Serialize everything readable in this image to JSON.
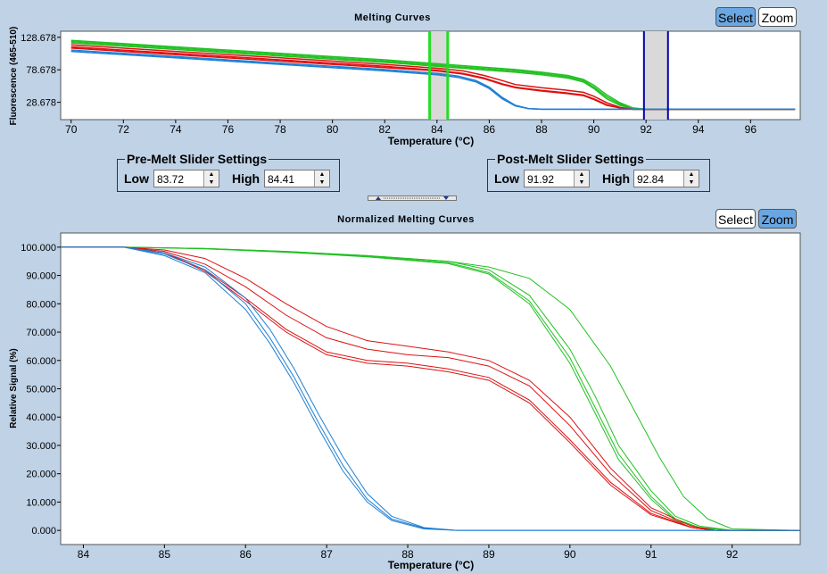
{
  "top_chart": {
    "title": "Melting Curves",
    "select_label": "Select",
    "zoom_label": "Zoom"
  },
  "pre_melt": {
    "legend": "Pre-Melt Slider Settings",
    "low_label": "Low",
    "low_value": "83.72",
    "high_label": "High",
    "high_value": "84.41"
  },
  "post_melt": {
    "legend": "Post-Melt Slider Settings",
    "low_label": "Low",
    "low_value": "91.92",
    "high_label": "High",
    "high_value": "92.84"
  },
  "bottom_chart": {
    "title": "Normalized Melting Curves",
    "select_label": "Select",
    "zoom_label": "Zoom"
  },
  "colors": {
    "blue": "#1f7fd4",
    "red": "#dd1111",
    "green": "#22c022",
    "pre_line": "#22dd22",
    "post_line": "#0000aa",
    "band": "#d9d9d9"
  },
  "chart_data": [
    {
      "type": "line",
      "title": "Melting Curves",
      "xlabel": "Temperature (°C)",
      "ylabel": "Fluorescence (465-510)",
      "xlim": [
        69.6,
        97.9
      ],
      "ylim": [
        2,
        138
      ],
      "xticks": [
        70,
        72,
        74,
        76,
        78,
        80,
        82,
        84,
        86,
        88,
        90,
        92,
        94,
        96
      ],
      "yticks": [
        "128.678",
        "78.678",
        "28.678"
      ],
      "ytick_values": [
        128.678,
        78.678,
        28.678
      ],
      "pre_melt_range": [
        83.72,
        84.41
      ],
      "post_melt_range": [
        91.92,
        92.84
      ],
      "series": [
        {
          "group": "green",
          "x": [
            70,
            74,
            78,
            82,
            84,
            86,
            87,
            88,
            89,
            89.6,
            90,
            90.5,
            91,
            91.5,
            92,
            97.7
          ],
          "y": [
            124,
            114,
            104,
            94,
            88,
            82,
            79,
            75,
            70,
            64,
            55,
            40,
            28,
            20,
            18,
            18
          ]
        },
        {
          "group": "green",
          "x": [
            70,
            74,
            78,
            82,
            84,
            86,
            87,
            88,
            89,
            89.6,
            90,
            90.5,
            91,
            91.5,
            92,
            97.7
          ],
          "y": [
            122,
            112,
            102,
            92,
            86,
            80,
            77,
            73,
            68,
            62,
            52,
            37,
            26,
            19,
            18,
            18
          ]
        },
        {
          "group": "green",
          "x": [
            70,
            74,
            78,
            82,
            84,
            86,
            87,
            88,
            89,
            89.6,
            90,
            90.5,
            91,
            91.5,
            92,
            97.7
          ],
          "y": [
            120,
            110,
            100,
            90,
            84,
            78,
            75,
            71,
            66,
            60,
            50,
            34,
            24,
            19,
            18,
            18
          ]
        },
        {
          "group": "red",
          "x": [
            70,
            74,
            78,
            82,
            84,
            85,
            85.8,
            86.5,
            87,
            88,
            89,
            89.6,
            90,
            90.5,
            91,
            91.5,
            92,
            97.7
          ],
          "y": [
            117,
            107,
            97,
            87,
            81,
            77,
            70,
            62,
            56,
            51,
            47,
            44,
            38,
            28,
            21,
            18,
            18,
            18
          ]
        },
        {
          "group": "red",
          "x": [
            70,
            74,
            78,
            82,
            84,
            85,
            85.8,
            86.5,
            87,
            88,
            89,
            89.6,
            90,
            90.5,
            91,
            91.5,
            92,
            97.7
          ],
          "y": [
            114,
            104,
            94,
            84,
            78,
            73,
            66,
            57,
            52,
            47,
            43,
            40,
            34,
            25,
            20,
            18,
            18,
            18
          ]
        },
        {
          "group": "red",
          "x": [
            70,
            74,
            78,
            82,
            84,
            85,
            85.8,
            86.5,
            87,
            88,
            89,
            89.6,
            90,
            90.5,
            91,
            91.5,
            92,
            97.7
          ],
          "y": [
            112,
            102,
            92,
            82,
            77,
            72,
            65,
            56,
            51,
            46,
            42,
            39,
            33,
            24,
            20,
            18,
            18,
            18
          ]
        },
        {
          "group": "blue",
          "x": [
            70,
            74,
            78,
            82,
            84,
            84.8,
            85.5,
            86,
            86.5,
            87,
            87.5,
            88,
            97.7
          ],
          "y": [
            109,
            99,
            89,
            79,
            73,
            69,
            62,
            52,
            36,
            24,
            19,
            18,
            18
          ]
        },
        {
          "group": "blue",
          "x": [
            70,
            74,
            78,
            82,
            84,
            84.8,
            85.5,
            86,
            86.5,
            87,
            87.5,
            88,
            97.7
          ],
          "y": [
            107,
            97,
            87,
            77,
            71,
            67,
            60,
            50,
            34,
            23,
            19,
            18,
            18
          ]
        }
      ]
    },
    {
      "type": "line",
      "title": "Normalized Melting Curves",
      "xlabel": "Temperature (°C)",
      "ylabel": "Relative Signal (%)",
      "xlim": [
        83.72,
        92.84
      ],
      "ylim": [
        -5,
        105
      ],
      "xticks": [
        84,
        85,
        86,
        87,
        88,
        89,
        90,
        91,
        92
      ],
      "yticks": [
        "100.000",
        "90.000",
        "80.000",
        "70.000",
        "60.000",
        "50.000",
        "40.000",
        "30.000",
        "20.000",
        "10.000",
        "0.000"
      ],
      "ytick_values": [
        100,
        90,
        80,
        70,
        60,
        50,
        40,
        30,
        20,
        10,
        0
      ],
      "series": [
        {
          "group": "green",
          "x": [
            83.72,
            84.5,
            85.5,
            86.5,
            87.5,
            88.5,
            89,
            89.5,
            90,
            90.3,
            90.6,
            91,
            91.3,
            91.6,
            92,
            92.84
          ],
          "y": [
            100,
            100,
            99.5,
            98.5,
            97,
            95,
            92,
            83,
            64,
            48,
            30,
            14,
            5,
            1.5,
            0,
            0
          ]
        },
        {
          "group": "green",
          "x": [
            83.72,
            84.5,
            85.5,
            86.5,
            87.5,
            88.5,
            89,
            89.5,
            90,
            90.3,
            90.6,
            91,
            91.3,
            91.6,
            92,
            92.84
          ],
          "y": [
            100,
            100,
            99.5,
            98.3,
            96.8,
            94.5,
            91,
            81,
            61,
            44,
            27,
            12,
            4,
            1,
            0,
            0
          ]
        },
        {
          "group": "green",
          "x": [
            83.72,
            84.5,
            85.5,
            86.5,
            87.5,
            88.5,
            89,
            89.5,
            90,
            90.3,
            90.6,
            91,
            91.3,
            91.6,
            92,
            92.84
          ],
          "y": [
            100,
            100,
            99.4,
            98.2,
            96.6,
            94.2,
            90.5,
            80,
            59,
            42,
            25,
            11,
            3.5,
            1,
            0,
            0
          ]
        },
        {
          "group": "green",
          "x": [
            83.72,
            84.5,
            85.5,
            86.5,
            87.5,
            88.5,
            89,
            89.5,
            90,
            90.5,
            90.8,
            91.1,
            91.4,
            91.7,
            92,
            92.84
          ],
          "y": [
            100,
            100,
            99.5,
            98.5,
            97,
            95,
            93,
            89,
            78,
            58,
            42,
            26,
            12,
            4,
            0.5,
            0
          ]
        },
        {
          "group": "red",
          "x": [
            83.72,
            84.5,
            85,
            85.5,
            86,
            86.5,
            87,
            87.5,
            88,
            88.5,
            89,
            89.5,
            90,
            90.5,
            91,
            91.5,
            91.8,
            92.84
          ],
          "y": [
            100,
            100,
            99,
            96,
            89,
            80,
            72,
            67,
            65,
            63,
            60,
            53,
            40,
            22,
            8,
            1.5,
            0,
            0
          ]
        },
        {
          "group": "red",
          "x": [
            83.72,
            84.5,
            85,
            85.5,
            86,
            86.5,
            87,
            87.5,
            88,
            88.5,
            89,
            89.5,
            90,
            90.5,
            91,
            91.5,
            91.8,
            92.84
          ],
          "y": [
            100,
            100,
            98.5,
            94,
            86,
            76,
            68,
            64,
            62,
            61,
            58,
            51,
            37,
            20,
            7,
            1,
            0,
            0
          ]
        },
        {
          "group": "red",
          "x": [
            83.72,
            84.5,
            85,
            85.5,
            86,
            86.5,
            87,
            87.5,
            88,
            88.5,
            89,
            89.5,
            90,
            90.5,
            91,
            91.5,
            91.8,
            92.84
          ],
          "y": [
            100,
            100,
            98,
            92,
            82,
            71,
            63,
            60,
            59,
            57,
            54,
            46,
            32,
            17,
            6,
            1,
            0,
            0
          ]
        },
        {
          "group": "red",
          "x": [
            83.72,
            84.5,
            85,
            85.5,
            86,
            86.5,
            87,
            87.5,
            88,
            88.5,
            89,
            89.5,
            90,
            90.5,
            91,
            91.5,
            91.8,
            92.84
          ],
          "y": [
            100,
            100,
            98,
            91.5,
            81,
            70,
            62,
            59,
            58,
            56,
            53,
            45,
            31,
            16,
            5.5,
            1,
            0,
            0
          ]
        },
        {
          "group": "blue",
          "x": [
            83.72,
            84.5,
            85,
            85.5,
            86,
            86.3,
            86.6,
            86.9,
            87.2,
            87.5,
            87.8,
            88.2,
            88.6,
            92.84
          ],
          "y": [
            100,
            100,
            98,
            93,
            82,
            71,
            57,
            41,
            26,
            13,
            5,
            1,
            0,
            0
          ]
        },
        {
          "group": "blue",
          "x": [
            83.72,
            84.5,
            85,
            85.5,
            86,
            86.3,
            86.6,
            86.9,
            87.2,
            87.5,
            87.8,
            88.2,
            88.6,
            92.84
          ],
          "y": [
            100,
            100,
            97.5,
            92,
            80,
            68,
            54,
            38,
            23,
            11,
            4,
            0.8,
            0,
            0
          ]
        },
        {
          "group": "blue",
          "x": [
            83.72,
            84.5,
            85,
            85.5,
            86,
            86.3,
            86.6,
            86.9,
            87.2,
            87.5,
            87.8,
            88.2,
            88.6,
            92.84
          ],
          "y": [
            100,
            100,
            97,
            91,
            78,
            66,
            52,
            36,
            21,
            10,
            3.5,
            0.5,
            0,
            0
          ]
        }
      ]
    }
  ]
}
